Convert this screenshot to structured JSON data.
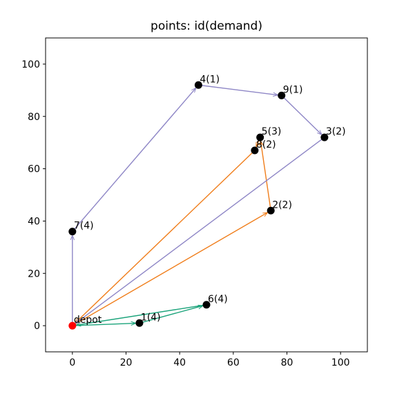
{
  "chart_data": {
    "type": "scatter",
    "title": "points: id(demand)",
    "xlabel": "",
    "ylabel": "",
    "xlim": [
      -10,
      110
    ],
    "ylim": [
      -10,
      110
    ],
    "xticks": [
      0,
      20,
      40,
      60,
      80,
      100
    ],
    "yticks": [
      0,
      20,
      40,
      60,
      80,
      100
    ],
    "grid": false,
    "points": [
      {
        "id": "depot",
        "label": "depot",
        "x": 0,
        "y": 0,
        "color": "#ff0000"
      },
      {
        "id": "1",
        "label": "1(4)",
        "x": 25,
        "y": 1,
        "color": "#000000"
      },
      {
        "id": "2",
        "label": "2(2)",
        "x": 74,
        "y": 44,
        "color": "#000000"
      },
      {
        "id": "3",
        "label": "3(2)",
        "x": 94,
        "y": 72,
        "color": "#000000"
      },
      {
        "id": "4",
        "label": "4(1)",
        "x": 47,
        "y": 92,
        "color": "#000000"
      },
      {
        "id": "5",
        "label": "5(3)",
        "x": 70,
        "y": 72,
        "color": "#000000"
      },
      {
        "id": "6",
        "label": "6(4)",
        "x": 50,
        "y": 8,
        "color": "#000000"
      },
      {
        "id": "7",
        "label": "7(4)",
        "x": 0,
        "y": 36,
        "color": "#000000"
      },
      {
        "id": "8",
        "label": "8(2)",
        "x": 68,
        "y": 67,
        "color": "#000000"
      },
      {
        "id": "9",
        "label": "9(1)",
        "x": 78,
        "y": 88,
        "color": "#000000"
      }
    ],
    "routes": [
      {
        "color": "#1aa37a",
        "stops": [
          "depot",
          "1",
          "6",
          "depot"
        ]
      },
      {
        "color": "#f07d1a",
        "stops": [
          "depot",
          "2",
          "5",
          "8",
          "depot"
        ]
      },
      {
        "color": "#8e86c6",
        "stops": [
          "depot",
          "7",
          "4",
          "9",
          "3",
          "depot"
        ]
      }
    ]
  }
}
